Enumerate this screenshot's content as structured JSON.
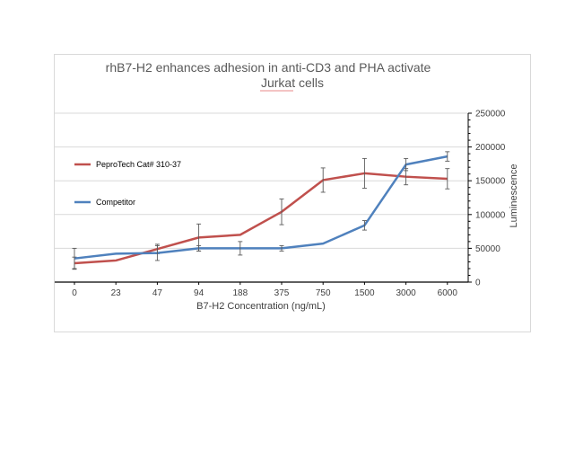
{
  "chart_data": {
    "type": "line",
    "title": [
      "rhB7-H2 enhances adhesion in anti-CD3 and PHA activate",
      "Jurkat cells"
    ],
    "xlabel": "B7-H2 Concentration (ng/mL)",
    "ylabel": "Luminescence",
    "categories": [
      "0",
      "23",
      "47",
      "94",
      "188",
      "375",
      "750",
      "1500",
      "3000",
      "6000"
    ],
    "y_ticks": [
      "0",
      "50000",
      "100000",
      "150000",
      "200000",
      "250000"
    ],
    "ylim": [
      0,
      250000
    ],
    "grid": true,
    "legend_position": "left",
    "series": [
      {
        "name": "PeproTech Cat# 310-37",
        "color": "#c0504d",
        "values": [
          28000,
          32000,
          49000,
          66000,
          70000,
          104000,
          151000,
          161000,
          156000,
          153000
        ],
        "errors": [
          9000,
          0,
          7000,
          20000,
          0,
          19000,
          18000,
          22000,
          12000,
          15000
        ]
      },
      {
        "name": "Competitor",
        "color": "#4f81bd",
        "values": [
          35000,
          42000,
          43000,
          50000,
          50000,
          50000,
          57000,
          84000,
          174000,
          186000
        ],
        "errors": [
          15000,
          0,
          11000,
          4000,
          10000,
          4000,
          0,
          7000,
          9000,
          7000
        ]
      }
    ]
  }
}
